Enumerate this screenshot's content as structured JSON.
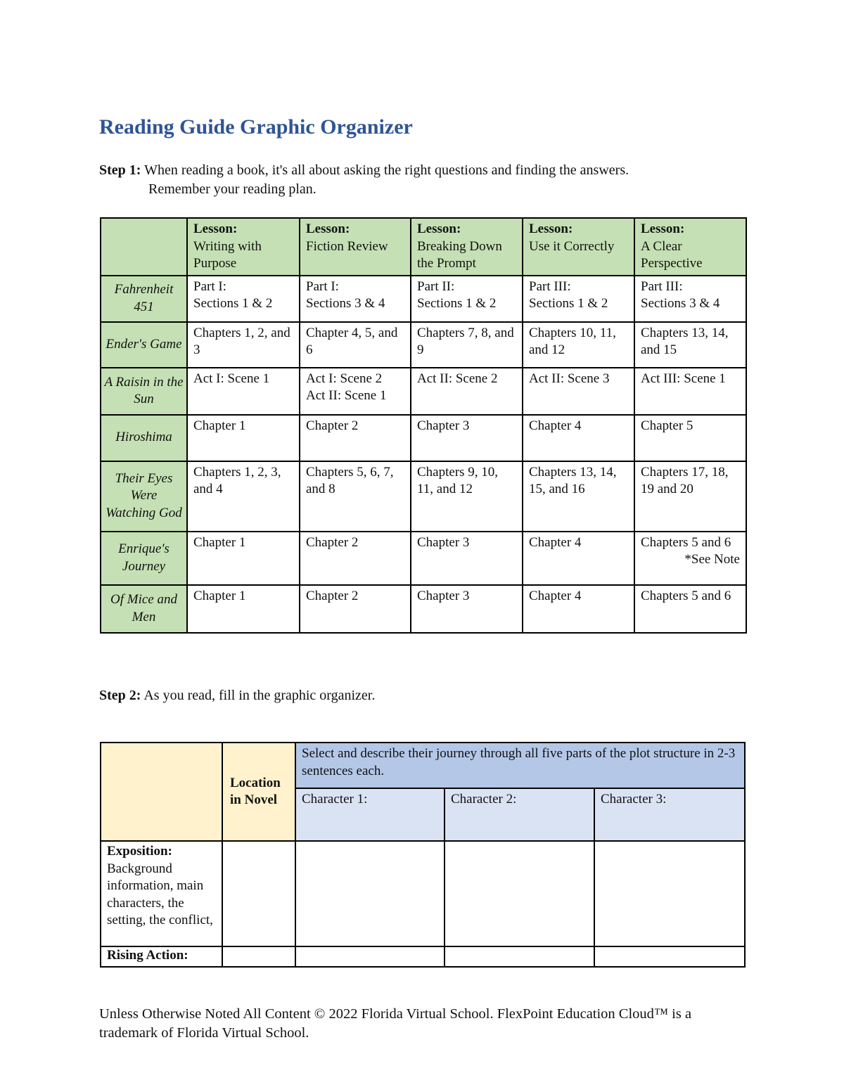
{
  "title": "Reading Guide Graphic Organizer",
  "step1": {
    "label": "Step 1:",
    "text": "When reading a book, it's all about asking the right questions and finding the answers.",
    "text2": "Remember your reading plan."
  },
  "table1": {
    "headers": [
      {
        "label": "Lesson:",
        "name": "Writing with Purpose"
      },
      {
        "label": "Lesson:",
        "name": "Fiction Review"
      },
      {
        "label": "Lesson:",
        "name": "Breaking Down the Prompt"
      },
      {
        "label": "Lesson:",
        "name": "Use it Correctly"
      },
      {
        "label": "Lesson:",
        "name": "A Clear Perspective"
      }
    ],
    "rows": [
      {
        "book": "Fahrenheit 451",
        "cells": [
          [
            "Part I:",
            "Sections 1 & 2"
          ],
          [
            "Part I:",
            "Sections 3 & 4"
          ],
          [
            "Part II:",
            "Sections 1 & 2"
          ],
          [
            "Part III:",
            "Sections 1 & 2"
          ],
          [
            "Part III:",
            "Sections 3 & 4"
          ]
        ]
      },
      {
        "book": "Ender's Game",
        "cells": [
          [
            "Chapters 1, 2, and 3"
          ],
          [
            "Chapter 4, 5, and 6"
          ],
          [
            "Chapters 7, 8, and 9"
          ],
          [
            "Chapters 10, 11, and 12"
          ],
          [
            "Chapters 13, 14, and 15"
          ]
        ]
      },
      {
        "book": "A Raisin in the Sun",
        "cells": [
          [
            "Act I: Scene 1"
          ],
          [
            "Act I: Scene 2",
            "Act II: Scene 1"
          ],
          [
            "Act II: Scene 2"
          ],
          [
            "Act II: Scene 3"
          ],
          [
            "Act III: Scene 1"
          ]
        ]
      },
      {
        "book": "Hiroshima",
        "cells": [
          [
            "Chapter 1"
          ],
          [
            "Chapter 2"
          ],
          [
            "Chapter 3"
          ],
          [
            "Chapter 4"
          ],
          [
            "Chapter 5"
          ]
        ]
      },
      {
        "book": "Their Eyes Were Watching God",
        "cells": [
          [
            "Chapters 1, 2, 3, and 4"
          ],
          [
            "Chapters 5, 6, 7, and 8"
          ],
          [
            "Chapters 9, 10, 11, and 12"
          ],
          [
            "Chapters 13, 14, 15, and 16"
          ],
          [
            "Chapters 17, 18, 19 and 20"
          ]
        ]
      },
      {
        "book": "Enrique's Journey",
        "cells": [
          [
            "Chapter 1"
          ],
          [
            "Chapter 2"
          ],
          [
            "Chapter 3"
          ],
          [
            "Chapter 4"
          ],
          [
            "Chapters 5 and 6"
          ]
        ],
        "note": "*See Note"
      },
      {
        "book": "Of Mice and Men",
        "cells": [
          [
            "Chapter 1"
          ],
          [
            "Chapter 2"
          ],
          [
            "Chapter 3"
          ],
          [
            "Chapter 4"
          ],
          [
            "Chapters 5 and 6"
          ]
        ]
      }
    ]
  },
  "step2": {
    "label": "Step 2:",
    "text": "As you read, fill in the graphic organizer."
  },
  "table2": {
    "location_header": "Location in Novel",
    "instruction": "Select and describe their journey through all five parts of the plot structure in 2-3 sentences each.",
    "characters": [
      "Character 1:",
      "Character 2:",
      "Character 3:"
    ],
    "rows": [
      {
        "label": "Exposition:",
        "desc": "Background information, main characters, the setting, the conflict,"
      },
      {
        "label": "Rising Action:",
        "desc": ""
      }
    ]
  },
  "footer": "Unless Otherwise Noted All Content © 2022 Florida Virtual School. FlexPoint Education Cloud™ is a trademark of Florida Virtual School.",
  "colors": {
    "title": "#2F5496",
    "lesson_header": "#C5E0B4",
    "location_header": "#FFF2CC",
    "instruction_header": "#B4C7E7",
    "character_header": "#DAE3F3"
  }
}
